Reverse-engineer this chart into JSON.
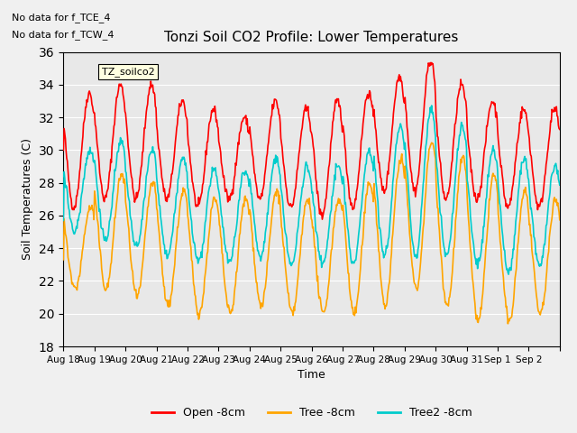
{
  "title": "Tonzi Soil CO2 Profile: Lower Temperatures",
  "ylabel": "Soil Temperatures (C)",
  "xlabel": "Time",
  "annotation1": "No data for f_TCE_4",
  "annotation2": "No data for f_TCW_4",
  "box_label": "TZ_soilco2",
  "ylim": [
    18,
    36
  ],
  "yticks": [
    18,
    20,
    22,
    24,
    26,
    28,
    30,
    32,
    34,
    36
  ],
  "bg_color": "#e8e8e8",
  "open_color": "#ff0000",
  "tree_color": "#ffa500",
  "tree2_color": "#00cccc",
  "legend_labels": [
    "Open -8cm",
    "Tree -8cm",
    "Tree2 -8cm"
  ],
  "tick_labels": [
    "Aug 18",
    "Aug 19",
    "Aug 20",
    "Aug 21",
    "Aug 22",
    "Aug 23",
    "Aug 24",
    "Aug 25",
    "Aug 26",
    "Aug 27",
    "Aug 28",
    "Aug 29",
    "Aug 30",
    "Aug 31",
    "Sep 1",
    "Sep 2",
    ""
  ],
  "n_days": 16
}
